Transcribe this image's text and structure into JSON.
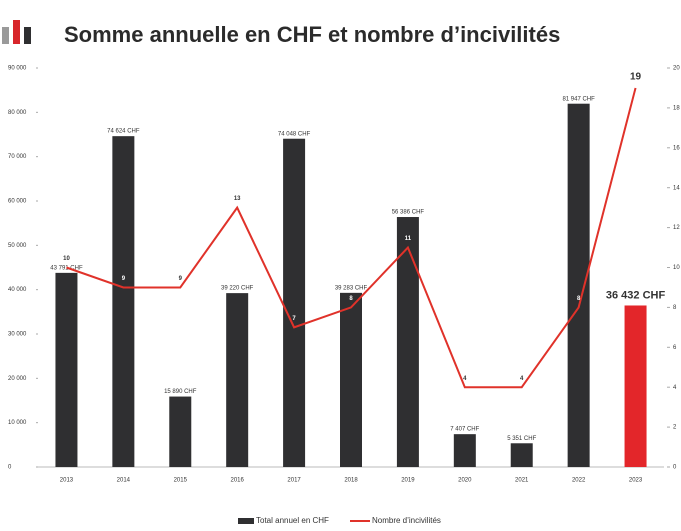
{
  "chart_data": {
    "type": "bar-line",
    "title": "Somme annuelle en CHF et nombre d’incivilités",
    "categories": [
      "2013",
      "2014",
      "2015",
      "2016",
      "2017",
      "2018",
      "2019",
      "2020",
      "2021",
      "2022",
      "2023"
    ],
    "ylim": [
      0,
      90000
    ],
    "yticks": [
      0,
      {
        "value": 10000,
        "label": "10 000"
      },
      {
        "value": 20000,
        "label": "20 000"
      },
      {
        "value": 30000,
        "label": "30 000"
      },
      {
        "value": 40000,
        "label": "40 000"
      },
      {
        "value": 50000,
        "label": "50 000"
      },
      {
        "value": 60000,
        "label": "60 000"
      },
      {
        "value": 70000,
        "label": "70 000"
      },
      {
        "value": 80000,
        "label": "80 000"
      },
      {
        "value": 90000,
        "label": "90 000"
      }
    ],
    "y2lim": [
      0,
      20
    ],
    "y2ticks": [
      0,
      2,
      4,
      6,
      8,
      10,
      12,
      14,
      16,
      18,
      20
    ],
    "series": [
      {
        "name": "Total annuel en CHF",
        "type": "bar",
        "color": "#2f2f31",
        "colors": [
          "#2f2f31",
          "#2f2f31",
          "#2f2f31",
          "#2f2f31",
          "#2f2f31",
          "#2f2f31",
          "#2f2f31",
          "#2f2f31",
          "#2f2f31",
          "#2f2f31",
          "#e3262a"
        ],
        "values": [
          43791,
          74624,
          15890,
          39220,
          74048,
          39283,
          56386,
          7407,
          5351,
          81947,
          36432
        ],
        "value_labels": [
          "43 791 CHF",
          "74 624 CHF",
          "15 890 CHF",
          "39 220 CHF",
          "74 048 CHF",
          "39 283 CHF",
          "56 386 CHF",
          "7 407 CHF",
          "5 351 CHF",
          "81 947 CHF",
          "36 432 CHF"
        ]
      },
      {
        "name": "Nombre d’incivilités",
        "type": "line",
        "axis": "y2",
        "color": "#e0322a",
        "values": [
          10,
          9,
          9,
          13,
          7,
          8,
          11,
          4,
          4,
          8,
          19
        ]
      }
    ]
  }
}
